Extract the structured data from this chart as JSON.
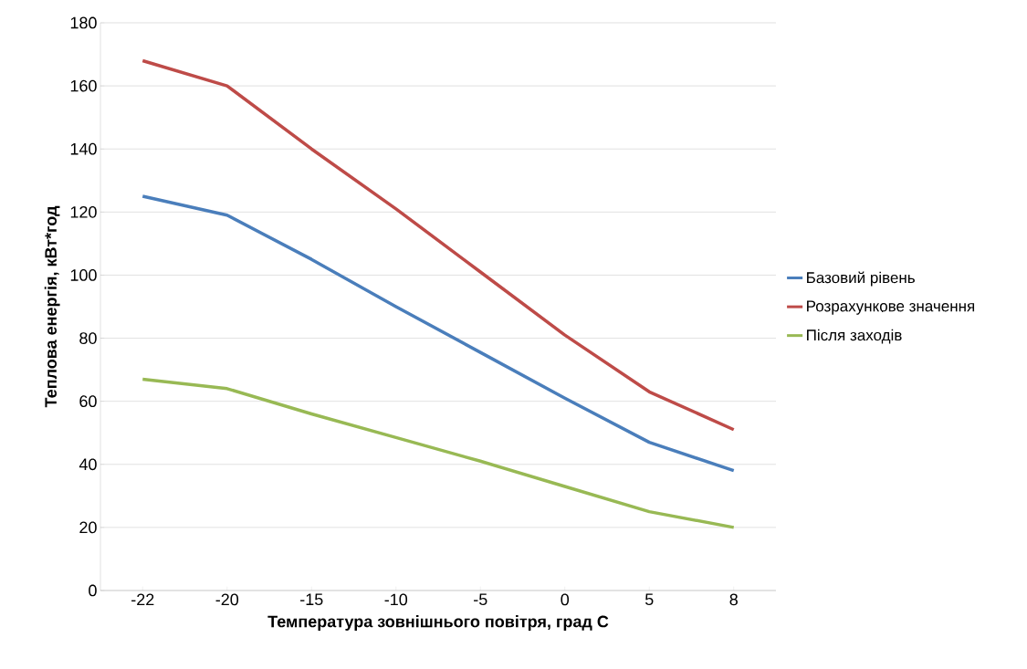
{
  "chart_data": {
    "type": "line",
    "xlabel": "Температура зовнішнього повітря, град С",
    "ylabel": "Теплова енергія, кВт*год",
    "categories": [
      "-22",
      "-20",
      "-15",
      "-10",
      "-5",
      "0",
      "5",
      "8"
    ],
    "series": [
      {
        "name": "Базовий рівень",
        "color": "#4a7ebb",
        "values": [
          125,
          119,
          105,
          90,
          75.5,
          61,
          47,
          38
        ]
      },
      {
        "name": "Розрахункове значення",
        "color": "#be4b48",
        "values": [
          168,
          160,
          140,
          121,
          101,
          81,
          63,
          51
        ]
      },
      {
        "name": "Після заходів",
        "color": "#98b954",
        "values": [
          67,
          64,
          56,
          48.5,
          41,
          33,
          25,
          20
        ]
      }
    ],
    "ylim": [
      0,
      180
    ],
    "yticks": [
      0,
      20,
      40,
      60,
      80,
      100,
      120,
      140,
      160,
      180
    ],
    "grid": "y",
    "legend": "right",
    "marker": "none",
    "line_style": "solid"
  }
}
